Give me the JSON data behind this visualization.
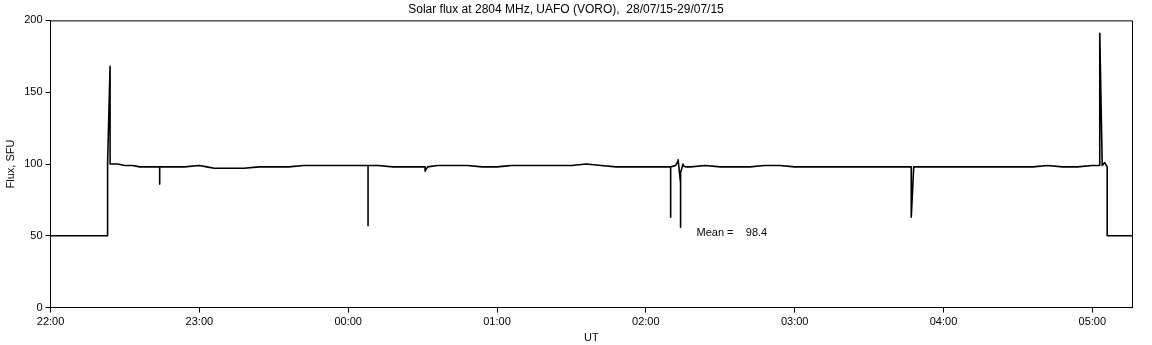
{
  "chart_data": {
    "type": "line",
    "title": "Solar flux at 2804 MHz, UAFO (VORO),  28/07/15-29/07/15",
    "xlabel": "UT",
    "ylabel": "Flux, SFU",
    "annotations": [
      "Mean =    98.4"
    ],
    "series": [
      {
        "color": "#000000",
        "x": [
          "--07-28T22:00",
          "--07-28T22:23",
          "--07-28T22:23",
          "--07-28T22:24",
          "--07-28T22:24",
          "--07-28T22:27",
          "--07-28T22:30",
          "--07-28T22:33",
          "--07-28T22:36",
          "--07-28T22:39",
          "--07-28T22:42",
          "--07-28T22:44",
          "--07-28T22:44",
          "--07-28T22:44",
          "--07-28T22:48",
          "--07-28T22:54",
          "--07-28T23:00",
          "--07-28T23:03",
          "--07-28T23:06",
          "--07-28T23:09",
          "--07-28T23:12",
          "--07-28T23:18",
          "--07-28T23:24",
          "--07-28T23:30",
          "--07-28T23:36",
          "--07-28T23:42",
          "--07-28T23:48",
          "--07-28T23:54",
          "--07-29T00:00",
          "--07-29T00:06",
          "--07-29T00:08",
          "--07-29T00:08",
          "--07-29T00:08",
          "--07-29T00:12",
          "--07-29T00:18",
          "--07-29T00:24",
          "--07-29T00:30",
          "--07-29T00:31",
          "--07-29T00:31",
          "--07-29T00:32",
          "--07-29T00:36",
          "--07-29T00:42",
          "--07-29T00:48",
          "--07-29T00:54",
          "--07-29T01:00",
          "--07-29T01:06",
          "--07-29T01:12",
          "--07-29T01:18",
          "--07-29T01:24",
          "--07-29T01:30",
          "--07-29T01:36",
          "--07-29T01:42",
          "--07-29T01:48",
          "--07-29T01:54",
          "--07-29T02:00",
          "--07-29T02:06",
          "--07-29T02:10",
          "--07-29T02:10",
          "--07-29T02:10",
          "--07-29T02:12",
          "--07-29T02:13",
          "--07-29T02:13",
          "--07-29T02:14",
          "--07-29T02:14",
          "--07-29T02:14",
          "--07-29T02:15",
          "--07-29T02:15",
          "--07-29T02:16",
          "--07-29T02:18",
          "--07-29T02:24",
          "--07-29T02:30",
          "--07-29T02:36",
          "--07-29T02:42",
          "--07-29T02:48",
          "--07-29T02:54",
          "--07-29T03:00",
          "--07-29T03:06",
          "--07-29T03:12",
          "--07-29T03:18",
          "--07-29T03:24",
          "--07-29T03:30",
          "--07-29T03:36",
          "--07-29T03:42",
          "--07-29T03:47",
          "--07-29T03:47",
          "--07-29T03:48",
          "--07-29T03:54",
          "--07-29T04:00",
          "--07-29T04:06",
          "--07-29T04:12",
          "--07-29T04:18",
          "--07-29T04:24",
          "--07-29T04:30",
          "--07-29T04:36",
          "--07-29T04:42",
          "--07-29T04:48",
          "--07-29T04:54",
          "--07-29T05:00",
          "--07-29T05:03",
          "--07-29T05:03",
          "--07-29T05:04",
          "--07-29T05:05",
          "--07-29T05:06",
          "--07-29T05:06",
          "--07-29T05:16"
        ],
        "values": [
          50,
          50,
          101,
          168,
          100,
          100,
          99,
          99,
          98,
          98,
          98,
          98,
          86,
          98,
          98,
          98,
          99,
          98,
          97,
          97,
          97,
          97,
          98,
          98,
          98,
          99,
          99,
          99,
          99,
          99,
          99,
          57,
          99,
          99,
          98,
          98,
          98,
          98,
          95,
          98,
          99,
          99,
          99,
          98,
          98,
          99,
          99,
          99,
          99,
          99,
          100,
          99,
          98,
          98,
          98,
          98,
          98,
          63,
          98,
          99,
          102,
          103,
          87,
          56,
          94,
          100,
          99,
          98,
          98,
          99,
          98,
          98,
          98,
          99,
          99,
          98,
          98,
          98,
          98,
          98,
          98,
          98,
          98,
          98,
          63,
          98,
          98,
          98,
          98,
          98,
          98,
          98,
          98,
          98,
          99,
          98,
          98,
          99,
          99,
          191,
          99,
          101,
          98,
          50,
          50
        ]
      }
    ],
    "xlim": [
      "--07-28T22:00",
      "--07-29T05:16"
    ],
    "xticks": [
      {
        "value": "--07-28T22:00",
        "label": "22:00"
      },
      {
        "value": "--07-28T23:00",
        "label": "23:00"
      },
      {
        "value": "--07-29T00:00",
        "label": "00:00"
      },
      {
        "value": "--07-29T01:00",
        "label": "01:00"
      },
      {
        "value": "--07-29T02:00",
        "label": "02:00"
      },
      {
        "value": "--07-29T03:00",
        "label": "03:00"
      },
      {
        "value": "--07-29T04:00",
        "label": "04:00"
      },
      {
        "value": "--07-29T05:00",
        "label": "05:00"
      }
    ],
    "ylim": [
      0,
      200
    ],
    "yticks": [
      0,
      50,
      100,
      150,
      200
    ],
    "legend": false
  }
}
